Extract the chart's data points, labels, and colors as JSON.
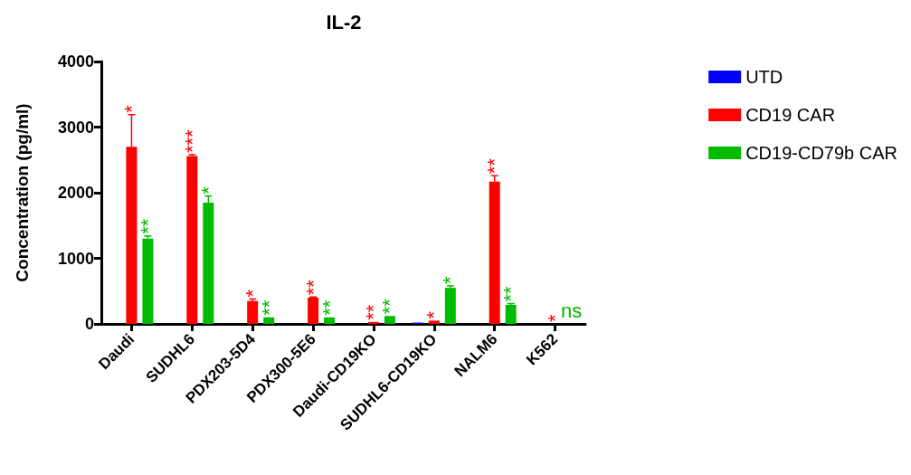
{
  "chart_data": {
    "type": "bar",
    "title": "IL-2",
    "ylabel": "Concentration (pg/ml)",
    "categories": [
      "Daudi",
      "SUDHL6",
      "PDX203-5D4",
      "PDX300-5E6",
      "Daudi-CD19KO",
      "SUDHL6-CD19KO",
      "NALM6",
      "K562"
    ],
    "series": [
      {
        "name": "UTD",
        "color": "#0000ff",
        "values": [
          0,
          0,
          0,
          0,
          0,
          20,
          0,
          0
        ]
      },
      {
        "name": "CD19 CAR",
        "color": "#ff0000",
        "values": [
          2700,
          2560,
          350,
          400,
          30,
          50,
          2170,
          0
        ],
        "errors": [
          [
            2700,
            3190
          ],
          [
            2560,
            2580
          ],
          [
            350,
            380
          ],
          [
            400,
            410
          ],
          null,
          null,
          [
            2170,
            2260
          ],
          null
        ],
        "value_labels": [
          "*",
          "***",
          "*",
          "**",
          "**",
          "*",
          "**",
          "*"
        ]
      },
      {
        "name": "CD19-CD79b CAR",
        "color": "#00bb00",
        "values": [
          1300,
          1850,
          100,
          100,
          120,
          550,
          290,
          0
        ],
        "errors": [
          [
            1300,
            1340
          ],
          [
            1850,
            1950
          ],
          null,
          null,
          null,
          [
            550,
            580
          ],
          [
            290,
            310
          ],
          null
        ],
        "value_labels": [
          "**",
          "*",
          "**",
          "**",
          "**",
          "*",
          "**",
          "ns"
        ]
      }
    ],
    "ylim": [
      0,
      4000
    ],
    "yticks": [
      0,
      1000,
      2000,
      3000,
      4000
    ],
    "grid": false,
    "legend": "top right"
  }
}
